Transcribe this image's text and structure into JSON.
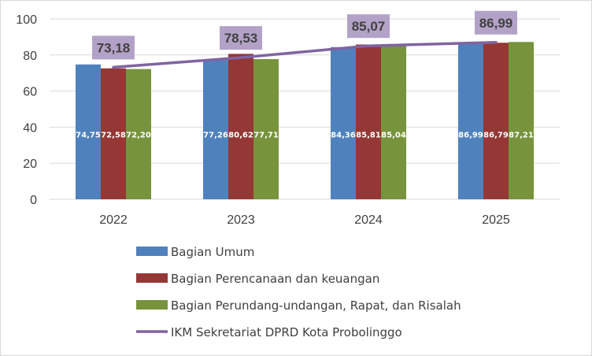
{
  "chart_data": {
    "type": "bar",
    "categories": [
      "2022",
      "2023",
      "2024",
      "2025"
    ],
    "ylim": [
      0,
      100
    ],
    "yticks": [
      0,
      20,
      40,
      60,
      80,
      100
    ],
    "grid": true,
    "legend_position": "bottom",
    "series": [
      {
        "name": "Bagian Umum",
        "color": "#4f81bd",
        "values": [
          74.75,
          77.26,
          84.36,
          86.99
        ],
        "labels": [
          "74,75",
          "77,26",
          "84,36",
          "86,99"
        ]
      },
      {
        "name": "Bagian Perencanaan dan keuangan",
        "color": "#953735",
        "values": [
          72.58,
          80.62,
          85.81,
          86.79
        ],
        "labels": [
          "72,58",
          "80,62",
          "85,81",
          "86,79"
        ]
      },
      {
        "name": "Bagian Perundang-undangan, Rapat, dan Risalah",
        "color": "#77933c",
        "values": [
          72.2,
          77.71,
          85.04,
          87.21
        ],
        "labels": [
          "72,20",
          "77,71",
          "85,04",
          "87,21"
        ]
      }
    ],
    "line": {
      "name": "IKM Sekretariat DPRD Kota Probolinggo",
      "color": "#8064a2",
      "label_bg": "#b3a2c7",
      "values": [
        73.18,
        78.53,
        85.07,
        86.99
      ],
      "labels": [
        "73,18",
        "78,53",
        "85,07",
        "86,99"
      ]
    }
  }
}
